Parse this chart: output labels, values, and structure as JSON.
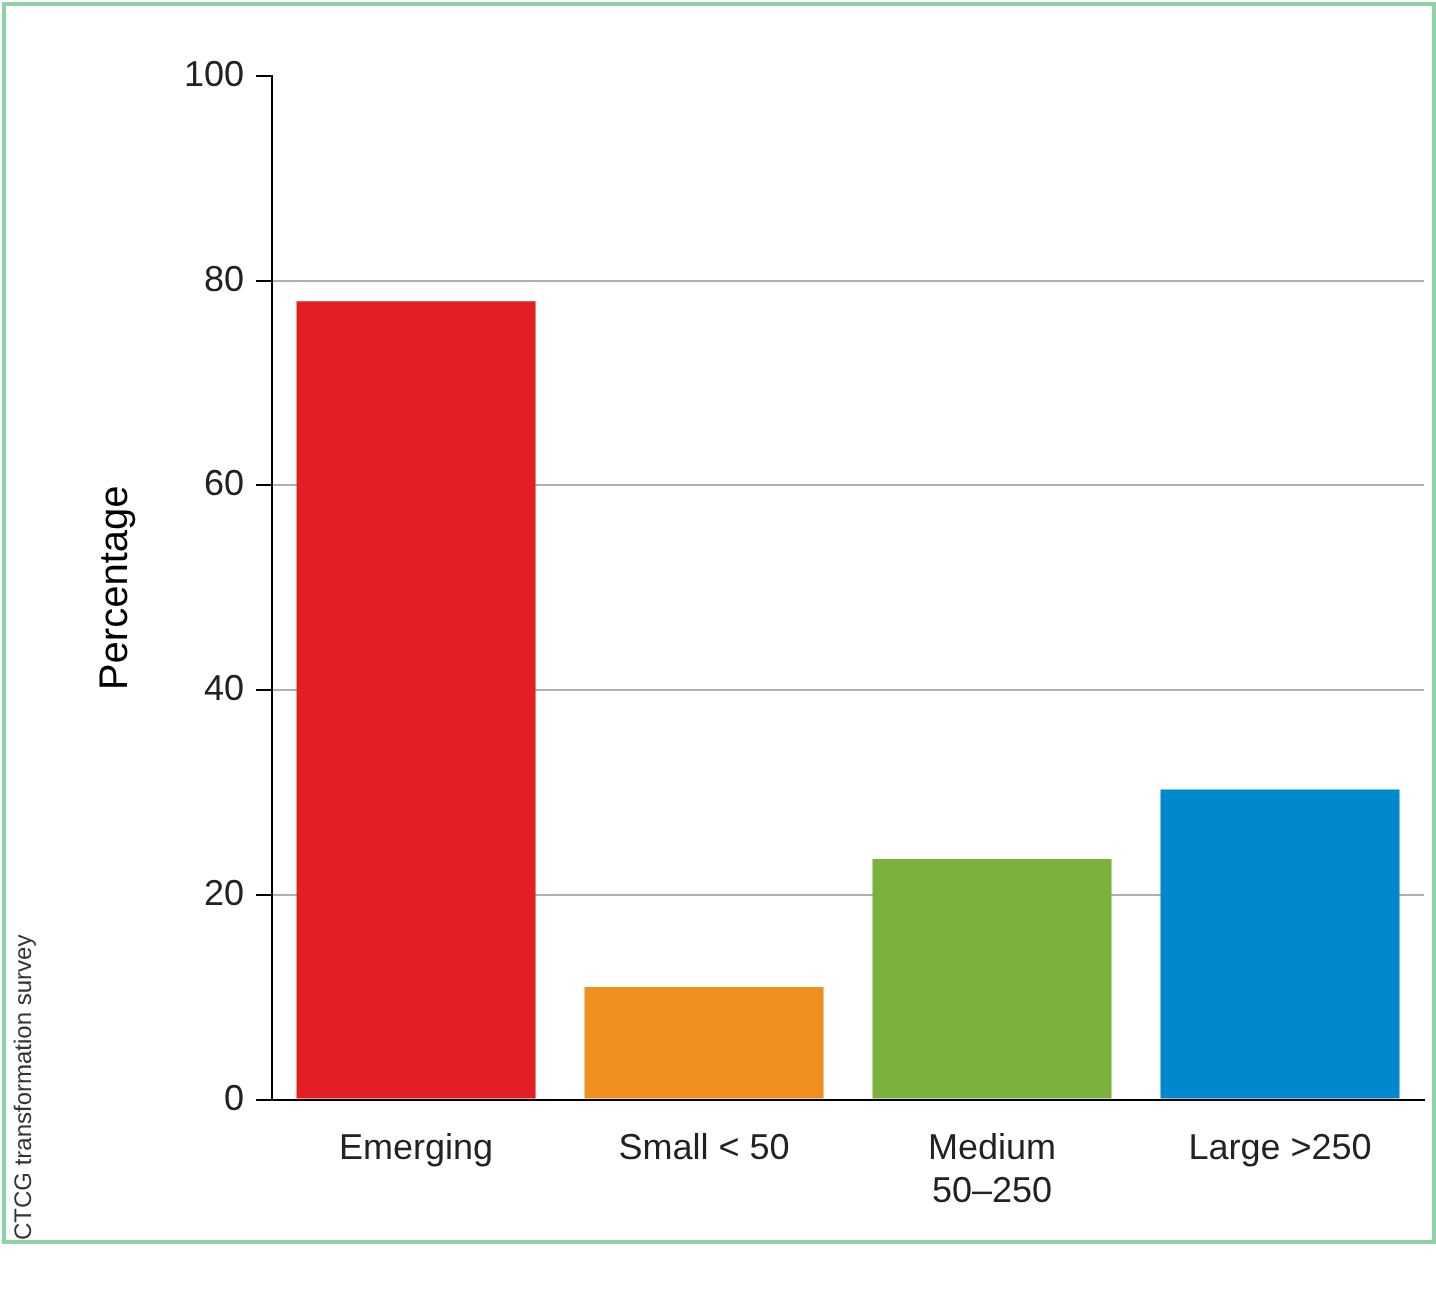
{
  "chart_data": {
    "type": "bar",
    "ylabel": "Percentage",
    "categories": [
      "Emerging",
      "Small < 50",
      "Medium\n50–250",
      "Large >250"
    ],
    "values": [
      78,
      11,
      23.5,
      30.3
    ],
    "colors": [
      "#e31e24",
      "#ef8f1f",
      "#7ab03c",
      "#0088cc"
    ],
    "ylim": [
      0,
      100
    ],
    "yticks": [
      0,
      20,
      40,
      60,
      80,
      100
    ],
    "grid": "y",
    "legend": false,
    "annotations": [
      "CTCG transformation survey"
    ]
  }
}
